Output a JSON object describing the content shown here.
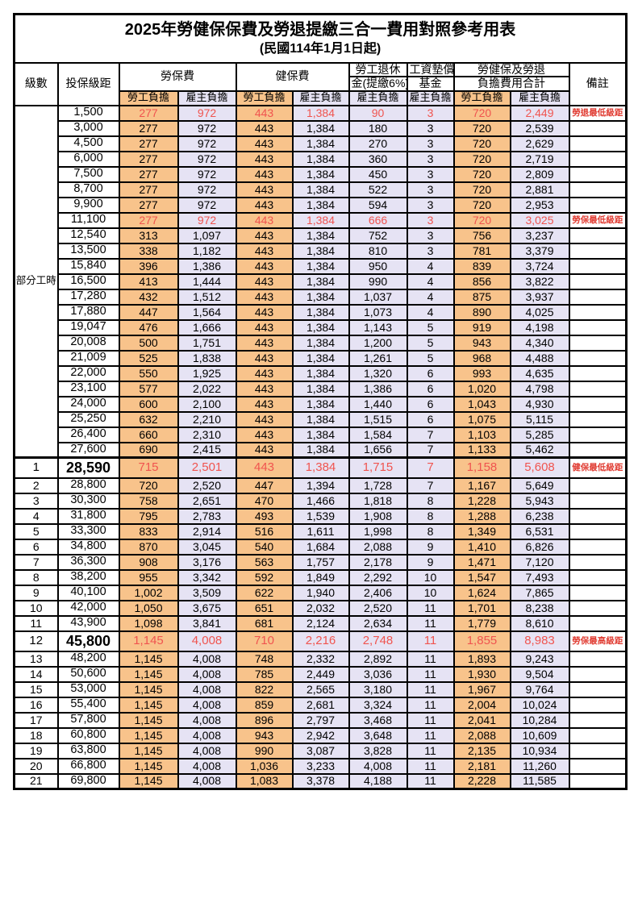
{
  "title": "2025年勞健保保費及勞退提繳三合一費用對照參考用表",
  "subtitle": "(民國114年1月1日起)",
  "colors": {
    "employee_col_bg": "#f8c38b",
    "employer_col_bg": "#e6e3f4",
    "highlight_value_red": "#f0544f",
    "remark_red": "#e03b31",
    "border": "#000000"
  },
  "header": {
    "level": "級數",
    "bracket": "投保級距",
    "labor_ins": "勞保費",
    "health_ins": "健保費",
    "pension_line1": "勞工退休",
    "pension_line2": "金(提繳6%)",
    "wage_fund_line1": "工資墊償",
    "wage_fund_line2": "基金",
    "total_line1": "勞健保及勞退",
    "total_line2": "負擔費用合計",
    "remark": "備註",
    "employee": "勞工負擔",
    "employer": "雇主負擔"
  },
  "table": {
    "part_time_label": "部分工時",
    "part_time_rowspan": 23,
    "rows": [
      {
        "level": "",
        "bracket": "1,500",
        "v": [
          "277",
          "972",
          "443",
          "1,384",
          "90",
          "3",
          "720",
          "2,449"
        ],
        "remark": "勞退最低級距",
        "style": "hl"
      },
      {
        "level": "",
        "bracket": "3,000",
        "v": [
          "277",
          "972",
          "443",
          "1,384",
          "180",
          "3",
          "720",
          "2,539"
        ],
        "remark": "",
        "style": ""
      },
      {
        "level": "",
        "bracket": "4,500",
        "v": [
          "277",
          "972",
          "443",
          "1,384",
          "270",
          "3",
          "720",
          "2,629"
        ],
        "remark": "",
        "style": ""
      },
      {
        "level": "",
        "bracket": "6,000",
        "v": [
          "277",
          "972",
          "443",
          "1,384",
          "360",
          "3",
          "720",
          "2,719"
        ],
        "remark": "",
        "style": ""
      },
      {
        "level": "",
        "bracket": "7,500",
        "v": [
          "277",
          "972",
          "443",
          "1,384",
          "450",
          "3",
          "720",
          "2,809"
        ],
        "remark": "",
        "style": ""
      },
      {
        "level": "",
        "bracket": "8,700",
        "v": [
          "277",
          "972",
          "443",
          "1,384",
          "522",
          "3",
          "720",
          "2,881"
        ],
        "remark": "",
        "style": ""
      },
      {
        "level": "",
        "bracket": "9,900",
        "v": [
          "277",
          "972",
          "443",
          "1,384",
          "594",
          "3",
          "720",
          "2,953"
        ],
        "remark": "",
        "style": ""
      },
      {
        "level": "",
        "bracket": "11,100",
        "v": [
          "277",
          "972",
          "443",
          "1,384",
          "666",
          "3",
          "720",
          "3,025"
        ],
        "remark": "勞保最低級距",
        "style": "hl"
      },
      {
        "level": "",
        "bracket": "12,540",
        "v": [
          "313",
          "1,097",
          "443",
          "1,384",
          "752",
          "3",
          "756",
          "3,237"
        ],
        "remark": "",
        "style": ""
      },
      {
        "level": "",
        "bracket": "13,500",
        "v": [
          "338",
          "1,182",
          "443",
          "1,384",
          "810",
          "3",
          "781",
          "3,379"
        ],
        "remark": "",
        "style": ""
      },
      {
        "level": "",
        "bracket": "15,840",
        "v": [
          "396",
          "1,386",
          "443",
          "1,384",
          "950",
          "4",
          "839",
          "3,724"
        ],
        "remark": "",
        "style": ""
      },
      {
        "level": "",
        "bracket": "16,500",
        "v": [
          "413",
          "1,444",
          "443",
          "1,384",
          "990",
          "4",
          "856",
          "3,822"
        ],
        "remark": "",
        "style": ""
      },
      {
        "level": "",
        "bracket": "17,280",
        "v": [
          "432",
          "1,512",
          "443",
          "1,384",
          "1,037",
          "4",
          "875",
          "3,937"
        ],
        "remark": "",
        "style": ""
      },
      {
        "level": "",
        "bracket": "17,880",
        "v": [
          "447",
          "1,564",
          "443",
          "1,384",
          "1,073",
          "4",
          "890",
          "4,025"
        ],
        "remark": "",
        "style": ""
      },
      {
        "level": "",
        "bracket": "19,047",
        "v": [
          "476",
          "1,666",
          "443",
          "1,384",
          "1,143",
          "5",
          "919",
          "4,198"
        ],
        "remark": "",
        "style": ""
      },
      {
        "level": "",
        "bracket": "20,008",
        "v": [
          "500",
          "1,751",
          "443",
          "1,384",
          "1,200",
          "5",
          "943",
          "4,340"
        ],
        "remark": "",
        "style": ""
      },
      {
        "level": "",
        "bracket": "21,009",
        "v": [
          "525",
          "1,838",
          "443",
          "1,384",
          "1,261",
          "5",
          "968",
          "4,488"
        ],
        "remark": "",
        "style": ""
      },
      {
        "level": "",
        "bracket": "22,000",
        "v": [
          "550",
          "1,925",
          "443",
          "1,384",
          "1,320",
          "6",
          "993",
          "4,635"
        ],
        "remark": "",
        "style": ""
      },
      {
        "level": "",
        "bracket": "23,100",
        "v": [
          "577",
          "2,022",
          "443",
          "1,384",
          "1,386",
          "6",
          "1,020",
          "4,798"
        ],
        "remark": "",
        "style": ""
      },
      {
        "level": "",
        "bracket": "24,000",
        "v": [
          "600",
          "2,100",
          "443",
          "1,384",
          "1,440",
          "6",
          "1,043",
          "4,930"
        ],
        "remark": "",
        "style": ""
      },
      {
        "level": "",
        "bracket": "25,250",
        "v": [
          "632",
          "2,210",
          "443",
          "1,384",
          "1,515",
          "6",
          "1,075",
          "5,115"
        ],
        "remark": "",
        "style": ""
      },
      {
        "level": "",
        "bracket": "26,400",
        "v": [
          "660",
          "2,310",
          "443",
          "1,384",
          "1,584",
          "7",
          "1,103",
          "5,285"
        ],
        "remark": "",
        "style": ""
      },
      {
        "level": "",
        "bracket": "27,600",
        "v": [
          "690",
          "2,415",
          "443",
          "1,384",
          "1,656",
          "7",
          "1,133",
          "5,462"
        ],
        "remark": "",
        "style": ""
      },
      {
        "level": "1",
        "bracket": "28,590",
        "v": [
          "715",
          "2,501",
          "443",
          "1,384",
          "1,715",
          "7",
          "1,158",
          "5,608"
        ],
        "remark": "健保最低級距",
        "style": "hl big sep"
      },
      {
        "level": "2",
        "bracket": "28,800",
        "v": [
          "720",
          "2,520",
          "447",
          "1,394",
          "1,728",
          "7",
          "1,167",
          "5,649"
        ],
        "remark": "",
        "style": ""
      },
      {
        "level": "3",
        "bracket": "30,300",
        "v": [
          "758",
          "2,651",
          "470",
          "1,466",
          "1,818",
          "8",
          "1,228",
          "5,943"
        ],
        "remark": "",
        "style": ""
      },
      {
        "level": "4",
        "bracket": "31,800",
        "v": [
          "795",
          "2,783",
          "493",
          "1,539",
          "1,908",
          "8",
          "1,288",
          "6,238"
        ],
        "remark": "",
        "style": ""
      },
      {
        "level": "5",
        "bracket": "33,300",
        "v": [
          "833",
          "2,914",
          "516",
          "1,611",
          "1,998",
          "8",
          "1,349",
          "6,531"
        ],
        "remark": "",
        "style": ""
      },
      {
        "level": "6",
        "bracket": "34,800",
        "v": [
          "870",
          "3,045",
          "540",
          "1,684",
          "2,088",
          "9",
          "1,410",
          "6,826"
        ],
        "remark": "",
        "style": ""
      },
      {
        "level": "7",
        "bracket": "36,300",
        "v": [
          "908",
          "3,176",
          "563",
          "1,757",
          "2,178",
          "9",
          "1,471",
          "7,120"
        ],
        "remark": "",
        "style": ""
      },
      {
        "level": "8",
        "bracket": "38,200",
        "v": [
          "955",
          "3,342",
          "592",
          "1,849",
          "2,292",
          "10",
          "1,547",
          "7,493"
        ],
        "remark": "",
        "style": ""
      },
      {
        "level": "9",
        "bracket": "40,100",
        "v": [
          "1,002",
          "3,509",
          "622",
          "1,940",
          "2,406",
          "10",
          "1,624",
          "7,865"
        ],
        "remark": "",
        "style": ""
      },
      {
        "level": "10",
        "bracket": "42,000",
        "v": [
          "1,050",
          "3,675",
          "651",
          "2,032",
          "2,520",
          "11",
          "1,701",
          "8,238"
        ],
        "remark": "",
        "style": ""
      },
      {
        "level": "11",
        "bracket": "43,900",
        "v": [
          "1,098",
          "3,841",
          "681",
          "2,124",
          "2,634",
          "11",
          "1,779",
          "8,610"
        ],
        "remark": "",
        "style": ""
      },
      {
        "level": "12",
        "bracket": "45,800",
        "v": [
          "1,145",
          "4,008",
          "710",
          "2,216",
          "2,748",
          "11",
          "1,855",
          "8,983"
        ],
        "remark": "勞保最高級距",
        "style": "hl big"
      },
      {
        "level": "13",
        "bracket": "48,200",
        "v": [
          "1,145",
          "4,008",
          "748",
          "2,332",
          "2,892",
          "11",
          "1,893",
          "9,243"
        ],
        "remark": "",
        "style": ""
      },
      {
        "level": "14",
        "bracket": "50,600",
        "v": [
          "1,145",
          "4,008",
          "785",
          "2,449",
          "3,036",
          "11",
          "1,930",
          "9,504"
        ],
        "remark": "",
        "style": ""
      },
      {
        "level": "15",
        "bracket": "53,000",
        "v": [
          "1,145",
          "4,008",
          "822",
          "2,565",
          "3,180",
          "11",
          "1,967",
          "9,764"
        ],
        "remark": "",
        "style": ""
      },
      {
        "level": "16",
        "bracket": "55,400",
        "v": [
          "1,145",
          "4,008",
          "859",
          "2,681",
          "3,324",
          "11",
          "2,004",
          "10,024"
        ],
        "remark": "",
        "style": ""
      },
      {
        "level": "17",
        "bracket": "57,800",
        "v": [
          "1,145",
          "4,008",
          "896",
          "2,797",
          "3,468",
          "11",
          "2,041",
          "10,284"
        ],
        "remark": "",
        "style": ""
      },
      {
        "level": "18",
        "bracket": "60,800",
        "v": [
          "1,145",
          "4,008",
          "943",
          "2,942",
          "3,648",
          "11",
          "2,088",
          "10,609"
        ],
        "remark": "",
        "style": ""
      },
      {
        "level": "19",
        "bracket": "63,800",
        "v": [
          "1,145",
          "4,008",
          "990",
          "3,087",
          "3,828",
          "11",
          "2,135",
          "10,934"
        ],
        "remark": "",
        "style": ""
      },
      {
        "level": "20",
        "bracket": "66,800",
        "v": [
          "1,145",
          "4,008",
          "1,036",
          "3,233",
          "4,008",
          "11",
          "2,181",
          "11,260"
        ],
        "remark": "",
        "style": ""
      },
      {
        "level": "21",
        "bracket": "69,800",
        "v": [
          "1,145",
          "4,008",
          "1,083",
          "3,378",
          "4,188",
          "11",
          "2,228",
          "11,585"
        ],
        "remark": "",
        "style": ""
      }
    ]
  }
}
